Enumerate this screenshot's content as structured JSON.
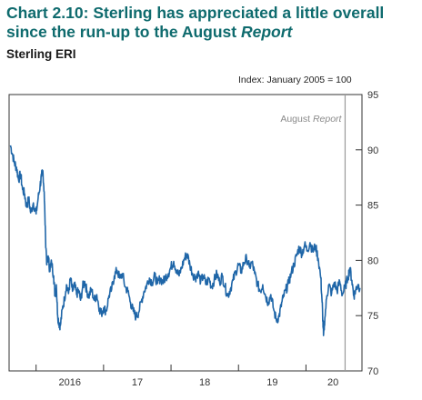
{
  "header": {
    "title_prefix": "Chart 2.10:",
    "title_main": " Sterling has appreciated a little overall since the run-up to the August ",
    "title_italic": "Report",
    "subtitle": "Sterling ERI"
  },
  "chart_data": {
    "type": "line",
    "title": "Chart 2.10: Sterling has appreciated a little overall since the run-up to the August Report",
    "subtitle": "Sterling ERI",
    "ylabel": "Index: January 2005 = 100",
    "ylim": [
      70,
      95
    ],
    "xlim": [
      2015.6,
      2020.83
    ],
    "y_ticks": [
      "95",
      "90",
      "85",
      "80",
      "75",
      "70"
    ],
    "x_ticks": [
      {
        "label": "2016",
        "value": 2016.5
      },
      {
        "label": "17",
        "value": 2017.5
      },
      {
        "label": "18",
        "value": 2018.5
      },
      {
        "label": "19",
        "value": 2019.5
      },
      {
        "label": "20",
        "value": 2020.4
      }
    ],
    "annotation": {
      "label_plain": "August ",
      "label_italic": "Report",
      "x": 2020.58
    },
    "line_color": "#1f66a8",
    "series": [
      {
        "values": [
          [
            2015.62,
            90.4
          ],
          [
            2015.65,
            89.6
          ],
          [
            2015.68,
            88.8
          ],
          [
            2015.71,
            88.4
          ],
          [
            2015.74,
            87.3
          ],
          [
            2015.77,
            87.8
          ],
          [
            2015.8,
            86.4
          ],
          [
            2015.83,
            86.0
          ],
          [
            2015.86,
            84.8
          ],
          [
            2015.89,
            85.6
          ],
          [
            2015.92,
            84.3
          ],
          [
            2015.96,
            85.2
          ],
          [
            2016.0,
            84.2
          ],
          [
            2016.03,
            85.6
          ],
          [
            2016.06,
            86.8
          ],
          [
            2016.08,
            87.6
          ],
          [
            2016.1,
            88.1
          ],
          [
            2016.12,
            86.2
          ],
          [
            2016.14,
            82.0
          ],
          [
            2016.16,
            79.6
          ],
          [
            2016.18,
            80.4
          ],
          [
            2016.2,
            79.2
          ],
          [
            2016.23,
            79.8
          ],
          [
            2016.26,
            78.6
          ],
          [
            2016.28,
            76.8
          ],
          [
            2016.3,
            77.8
          ],
          [
            2016.32,
            75.0
          ],
          [
            2016.34,
            74.3
          ],
          [
            2016.36,
            74.1
          ],
          [
            2016.39,
            75.6
          ],
          [
            2016.42,
            76.5
          ],
          [
            2016.45,
            77.8
          ],
          [
            2016.48,
            77.0
          ],
          [
            2016.51,
            78.4
          ],
          [
            2016.54,
            77.2
          ],
          [
            2016.57,
            77.8
          ],
          [
            2016.6,
            76.9
          ],
          [
            2016.63,
            77.3
          ],
          [
            2016.66,
            76.4
          ],
          [
            2016.69,
            77.6
          ],
          [
            2016.72,
            78.1
          ],
          [
            2016.75,
            77.3
          ],
          [
            2016.78,
            76.7
          ],
          [
            2016.82,
            77.4
          ],
          [
            2016.86,
            76.4
          ],
          [
            2016.9,
            76.9
          ],
          [
            2016.94,
            75.6
          ],
          [
            2016.97,
            75.2
          ],
          [
            2017.0,
            75.7
          ],
          [
            2017.04,
            75.4
          ],
          [
            2017.08,
            76.8
          ],
          [
            2017.12,
            77.4
          ],
          [
            2017.16,
            78.6
          ],
          [
            2017.2,
            79.1
          ],
          [
            2017.24,
            78.4
          ],
          [
            2017.28,
            78.8
          ],
          [
            2017.32,
            77.6
          ],
          [
            2017.36,
            77.2
          ],
          [
            2017.4,
            76.2
          ],
          [
            2017.44,
            75.4
          ],
          [
            2017.48,
            74.9
          ],
          [
            2017.52,
            75.3
          ],
          [
            2017.56,
            76.3
          ],
          [
            2017.6,
            77.2
          ],
          [
            2017.64,
            77.8
          ],
          [
            2017.68,
            78.4
          ],
          [
            2017.72,
            78.0
          ],
          [
            2017.76,
            78.6
          ],
          [
            2017.8,
            77.9
          ],
          [
            2017.84,
            78.4
          ],
          [
            2017.88,
            78.0
          ],
          [
            2017.92,
            78.5
          ],
          [
            2017.96,
            78.8
          ],
          [
            2018.0,
            79.4
          ],
          [
            2018.04,
            79.9
          ],
          [
            2018.08,
            79.1
          ],
          [
            2018.12,
            78.6
          ],
          [
            2018.16,
            79.4
          ],
          [
            2018.2,
            80.2
          ],
          [
            2018.24,
            80.6
          ],
          [
            2018.28,
            79.6
          ],
          [
            2018.32,
            78.8
          ],
          [
            2018.36,
            78.4
          ],
          [
            2018.4,
            78.9
          ],
          [
            2018.44,
            78.1
          ],
          [
            2018.48,
            78.6
          ],
          [
            2018.52,
            77.8
          ],
          [
            2018.56,
            78.4
          ],
          [
            2018.6,
            77.6
          ],
          [
            2018.64,
            78.2
          ],
          [
            2018.68,
            78.8
          ],
          [
            2018.72,
            78.0
          ],
          [
            2018.76,
            78.6
          ],
          [
            2018.8,
            77.6
          ],
          [
            2018.84,
            76.8
          ],
          [
            2018.88,
            77.4
          ],
          [
            2018.92,
            78.2
          ],
          [
            2018.96,
            79.0
          ],
          [
            2019.0,
            79.6
          ],
          [
            2019.04,
            79.0
          ],
          [
            2019.08,
            79.8
          ],
          [
            2019.12,
            80.2
          ],
          [
            2019.16,
            79.4
          ],
          [
            2019.2,
            79.8
          ],
          [
            2019.24,
            78.8
          ],
          [
            2019.28,
            77.9
          ],
          [
            2019.32,
            77.2
          ],
          [
            2019.36,
            77.8
          ],
          [
            2019.4,
            76.8
          ],
          [
            2019.44,
            76.2
          ],
          [
            2019.48,
            76.9
          ],
          [
            2019.52,
            75.6
          ],
          [
            2019.56,
            74.6
          ],
          [
            2019.6,
            74.9
          ],
          [
            2019.63,
            75.8
          ],
          [
            2019.66,
            76.6
          ],
          [
            2019.7,
            77.3
          ],
          [
            2019.74,
            77.9
          ],
          [
            2019.78,
            78.8
          ],
          [
            2019.82,
            79.6
          ],
          [
            2019.86,
            80.4
          ],
          [
            2019.9,
            81.2
          ],
          [
            2019.94,
            80.6
          ],
          [
            2019.98,
            81.4
          ],
          [
            2020.02,
            80.9
          ],
          [
            2020.06,
            81.6
          ],
          [
            2020.1,
            80.8
          ],
          [
            2020.14,
            81.3
          ],
          [
            2020.18,
            80.2
          ],
          [
            2020.22,
            78.4
          ],
          [
            2020.24,
            76.2
          ],
          [
            2020.25,
            74.6
          ],
          [
            2020.26,
            73.2
          ],
          [
            2020.28,
            74.8
          ],
          [
            2020.31,
            76.8
          ],
          [
            2020.34,
            77.8
          ],
          [
            2020.38,
            77.0
          ],
          [
            2020.42,
            78.0
          ],
          [
            2020.46,
            77.2
          ],
          [
            2020.5,
            78.1
          ],
          [
            2020.54,
            76.9
          ],
          [
            2020.58,
            77.6
          ],
          [
            2020.62,
            78.4
          ],
          [
            2020.65,
            79.3
          ],
          [
            2020.68,
            78.2
          ],
          [
            2020.71,
            76.8
          ],
          [
            2020.74,
            77.4
          ],
          [
            2020.77,
            77.8
          ],
          [
            2020.8,
            77.5
          ]
        ]
      }
    ]
  }
}
